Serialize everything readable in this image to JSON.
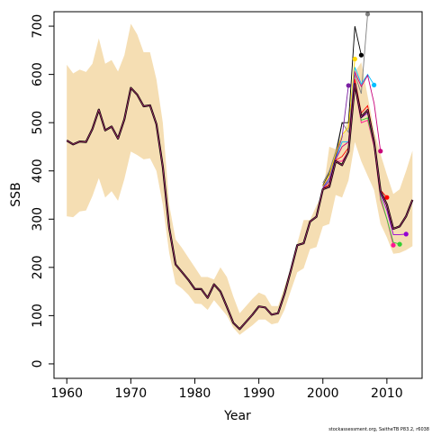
{
  "chart_data": {
    "type": "line",
    "xlabel": "Year",
    "ylabel": "SSB",
    "xlim": [
      1958,
      2015.5
    ],
    "ylim": [
      -30,
      730
    ],
    "x_ticks": [
      1960,
      1970,
      1980,
      1990,
      2000,
      2010
    ],
    "y_ticks": [
      0,
      100,
      200,
      300,
      400,
      500,
      600,
      700
    ],
    "grid": false,
    "footnote": "stockassessment.org, SaitheTB  P83.2, r6038",
    "colors": {
      "band": "#f5deb3",
      "main": "#000000",
      "inner_line": "#b0306e",
      "peels": [
        "#808080",
        "#000000",
        "#ffd700",
        "#7a1fa2",
        "#00bfff",
        "#c8007a",
        "#ff0000",
        "#ff1493",
        "#32cd32",
        "#9400d3"
      ]
    },
    "band": {
      "x": [
        1960,
        1961,
        1962,
        1963,
        1964,
        1965,
        1966,
        1967,
        1968,
        1969,
        1970,
        1971,
        1972,
        1973,
        1974,
        1975,
        1976,
        1977,
        1978,
        1979,
        1980,
        1981,
        1982,
        1983,
        1984,
        1985,
        1986,
        1987,
        1988,
        1989,
        1990,
        1991,
        1992,
        1993,
        1994,
        1995,
        1996,
        1997,
        1998,
        1999,
        2000,
        2001,
        2002,
        2003,
        2004,
        2005,
        2006,
        2007,
        2008,
        2009,
        2010,
        2011,
        2012,
        2013,
        2014
      ],
      "upper": [
        620,
        602,
        610,
        605,
        622,
        675,
        622,
        630,
        606,
        640,
        705,
        683,
        646,
        646,
        590,
        500,
        330,
        258,
        240,
        220,
        200,
        180,
        180,
        175,
        200,
        180,
        140,
        105,
        120,
        135,
        148,
        142,
        120,
        120,
        160,
        200,
        250,
        298,
        298,
        328,
        352,
        450,
        445,
        468,
        510,
        605,
        625,
        555,
        485,
        435,
        392,
        352,
        362,
        400,
        442
      ],
      "lower": [
        306,
        304,
        316,
        318,
        348,
        385,
        345,
        358,
        338,
        383,
        440,
        433,
        424,
        426,
        400,
        330,
        230,
        166,
        156,
        143,
        125,
        124,
        112,
        132,
        116,
        100,
        75,
        60,
        70,
        80,
        92,
        92,
        82,
        85,
        112,
        152,
        190,
        198,
        238,
        242,
        285,
        290,
        350,
        345,
        380,
        460,
        420,
        390,
        360,
        290,
        262,
        228,
        230,
        236,
        244
      ]
    },
    "series": [
      {
        "x": [
          1960,
          1961,
          1962,
          1963,
          1964,
          1965,
          1966,
          1967,
          1968,
          1969,
          1970,
          1971,
          1972,
          1973,
          1974,
          1975,
          1976,
          1977,
          1978,
          1979,
          1980,
          1981,
          1982,
          1983,
          1984,
          1985,
          1986,
          1987,
          1988,
          1989,
          1990,
          1991,
          1992,
          1993,
          1994,
          1995,
          1996,
          1997,
          1998,
          1999,
          2000,
          2001,
          2002,
          2003,
          2004,
          2005,
          2006,
          2007,
          2008,
          2009,
          2010,
          2011,
          2012,
          2013,
          2014
        ],
        "values": [
          463,
          455,
          461,
          460,
          487,
          527,
          484,
          492,
          467,
          507,
          572,
          558,
          534,
          536,
          497,
          408,
          282,
          206,
          190,
          174,
          155,
          155,
          137,
          165,
          150,
          118,
          85,
          72,
          87,
          102,
          119,
          117,
          102,
          105,
          145,
          194,
          246,
          250,
          295,
          305,
          362,
          367,
          420,
          412,
          440,
          580,
          512,
          526,
          460,
          358,
          330,
          280,
          285,
          306,
          340
        ]
      }
    ],
    "peels": [
      {
        "x": [
          2000,
          2001,
          2002,
          2003,
          2004,
          2005,
          2006,
          2007
        ],
        "values": [
          375,
          400,
          440,
          500,
          480,
          600,
          560,
          725
        ],
        "end": [
          2007,
          725
        ]
      },
      {
        "x": [
          2000,
          2001,
          2002,
          2003,
          2004,
          2005,
          2006
        ],
        "values": [
          370,
          395,
          430,
          500,
          500,
          700,
          640
        ],
        "end": [
          2006,
          640
        ]
      },
      {
        "x": [
          2000,
          2001,
          2002,
          2003,
          2004,
          2005
        ],
        "values": [
          368,
          392,
          435,
          475,
          490,
          632
        ],
        "end": [
          2005,
          632
        ]
      },
      {
        "x": [
          2000,
          2001,
          2002,
          2003,
          2004
        ],
        "values": [
          366,
          385,
          428,
          470,
          577
        ],
        "end": [
          2004,
          577
        ]
      },
      {
        "x": [
          2000,
          2001,
          2002,
          2003,
          2004,
          2005,
          2006,
          2007,
          2008
        ],
        "values": [
          365,
          380,
          425,
          460,
          460,
          615,
          580,
          600,
          578
        ],
        "end": [
          2008,
          578
        ]
      },
      {
        "x": [
          2000,
          2001,
          2002,
          2003,
          2004,
          2005,
          2006,
          2007,
          2008,
          2009
        ],
        "values": [
          364,
          378,
          424,
          450,
          460,
          605,
          575,
          598,
          540,
          441
        ],
        "end": [
          2009,
          441
        ]
      },
      {
        "x": [
          2000,
          2001,
          2002,
          2003,
          2004,
          2005,
          2006,
          2007,
          2008,
          2009,
          2010
        ],
        "values": [
          363,
          372,
          422,
          430,
          448,
          590,
          520,
          535,
          465,
          360,
          345
        ],
        "end": [
          2010,
          345
        ]
      },
      {
        "x": [
          2000,
          2001,
          2002,
          2003,
          2004,
          2005,
          2006,
          2007,
          2008,
          2009,
          2010,
          2011
        ],
        "values": [
          362,
          368,
          420,
          420,
          440,
          575,
          500,
          505,
          450,
          340,
          300,
          246
        ],
        "end": [
          2011,
          246
        ]
      },
      {
        "x": [
          2000,
          2001,
          2002,
          2003,
          2004,
          2005,
          2006,
          2007,
          2008,
          2009,
          2010,
          2011,
          2012
        ],
        "values": [
          362,
          366,
          418,
          415,
          440,
          580,
          505,
          510,
          455,
          345,
          300,
          252,
          248
        ],
        "end": [
          2012,
          248
        ]
      },
      {
        "x": [
          2000,
          2001,
          2002,
          2003,
          2004,
          2005,
          2006,
          2007,
          2008,
          2009,
          2010,
          2011,
          2012,
          2013
        ],
        "values": [
          362,
          366,
          419,
          412,
          440,
          582,
          510,
          520,
          458,
          352,
          318,
          268,
          268,
          269
        ],
        "end": [
          2013,
          269
        ]
      }
    ]
  }
}
